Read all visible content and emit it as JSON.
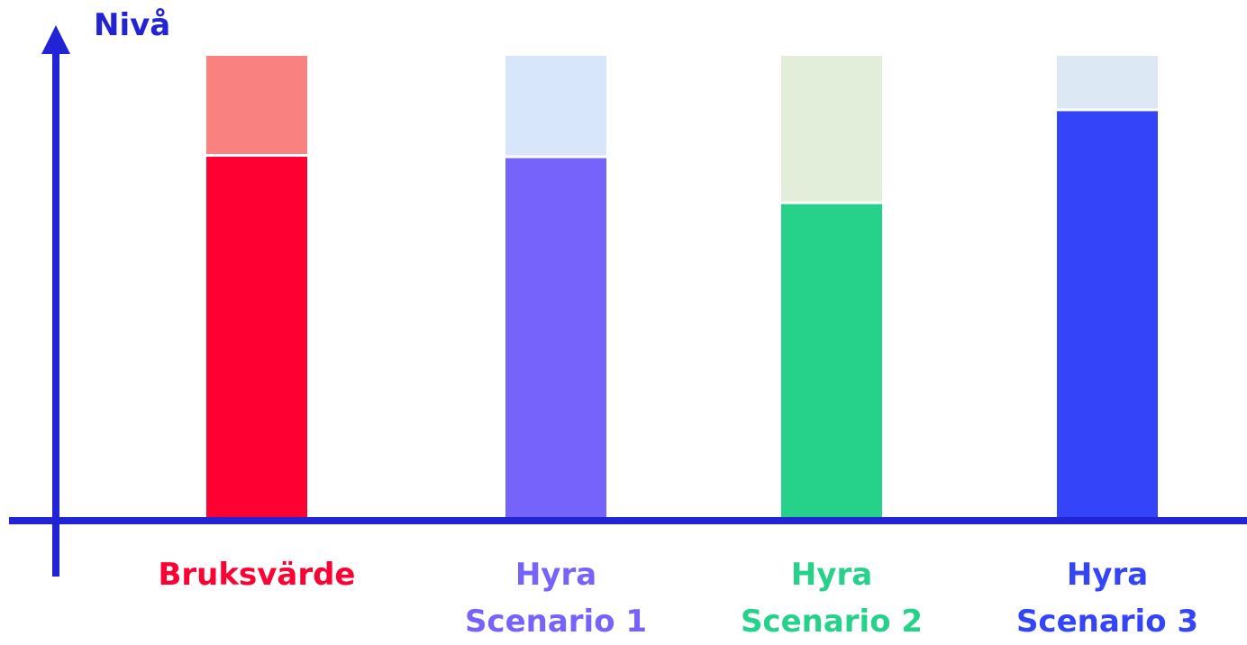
{
  "chart_data": {
    "type": "bar",
    "stacked": true,
    "ylabel": "Nivå",
    "xlabel": "",
    "title": "",
    "ylim": [
      0,
      100
    ],
    "grid": false,
    "categories": [
      {
        "line1": "Bruksvärde",
        "line2": ""
      },
      {
        "line1": "Hyra",
        "line2": "Scenario 1"
      },
      {
        "line1": "Hyra",
        "line2": "Scenario 2"
      },
      {
        "line1": "Hyra",
        "line2": "Scenario 3"
      }
    ],
    "series": [
      {
        "values": [
          78.3,
          78.0,
          68.1,
          88.1
        ]
      },
      {
        "values": [
          21.7,
          22.0,
          31.9,
          11.9
        ]
      }
    ],
    "colors": {
      "axis": "#2323d6",
      "base": [
        "#ff0033",
        "#7563fb",
        "#26d18a",
        "#3344f9"
      ],
      "top": [
        "#f98280",
        "#d8e6fc",
        "#e2eed9",
        "#dde8f5"
      ],
      "labels": [
        "#ff0033",
        "#7563fb",
        "#26d18a",
        "#3344f9"
      ]
    }
  }
}
